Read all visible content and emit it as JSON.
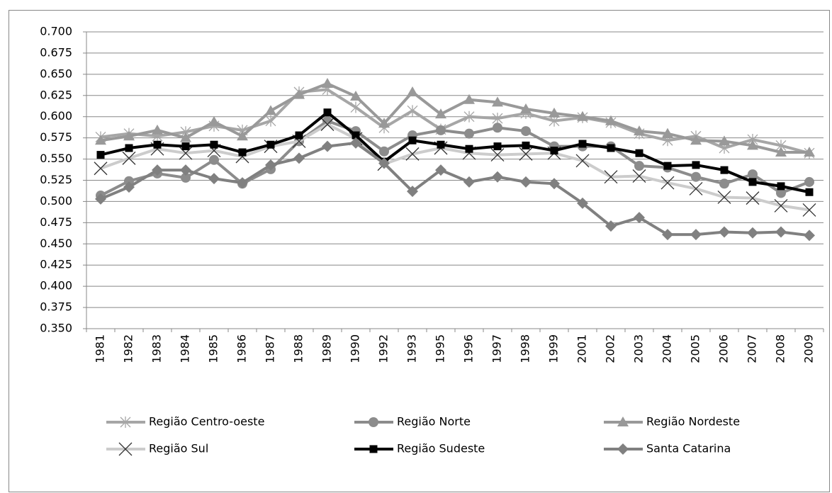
{
  "chart_data": {
    "type": "line",
    "categories": [
      "1981",
      "1982",
      "1983",
      "1984",
      "1985",
      "1986",
      "1987",
      "1988",
      "1989",
      "1990",
      "1992",
      "1993",
      "1995",
      "1996",
      "1997",
      "1998",
      "1999",
      "2001",
      "2002",
      "2003",
      "2004",
      "2005",
      "2006",
      "2007",
      "2008",
      "2009"
    ],
    "ylim": [
      0.35,
      0.7
    ],
    "yticks": [
      {
        "value": 0.35,
        "label": "0.350"
      },
      {
        "value": 0.375,
        "label": "0.375"
      },
      {
        "value": 0.4,
        "label": "0.400"
      },
      {
        "value": 0.425,
        "label": "0.425"
      },
      {
        "value": 0.45,
        "label": "0.450"
      },
      {
        "value": 0.475,
        "label": "0.475"
      },
      {
        "value": 0.5,
        "label": "0.500"
      },
      {
        "value": 0.525,
        "label": "0.525"
      },
      {
        "value": 0.55,
        "label": "0.550"
      },
      {
        "value": 0.575,
        "label": "0.575"
      },
      {
        "value": 0.6,
        "label": "0.600"
      },
      {
        "value": 0.625,
        "label": "0.625"
      },
      {
        "value": 0.65,
        "label": "0.650"
      },
      {
        "value": 0.675,
        "label": "0.675"
      },
      {
        "value": 0.7,
        "label": "0.700"
      }
    ],
    "grid": true,
    "legend": "bottom",
    "series": [
      {
        "name": "Região Centro-oeste",
        "color": "#a6a6a6",
        "marker": "asterisk",
        "values": [
          0.576,
          0.58,
          0.577,
          0.582,
          0.589,
          0.584,
          0.595,
          0.629,
          0.632,
          0.611,
          0.587,
          0.607,
          0.585,
          0.6,
          0.598,
          0.604,
          0.595,
          0.599,
          0.593,
          0.58,
          0.572,
          0.577,
          0.563,
          0.573,
          0.566,
          0.557
        ]
      },
      {
        "name": "Região Norte",
        "color": "#8c8c8c",
        "marker": "circle",
        "values": [
          0.507,
          0.524,
          0.533,
          0.528,
          0.549,
          0.521,
          0.538,
          0.571,
          0.595,
          0.583,
          0.559,
          0.578,
          0.584,
          0.58,
          0.587,
          0.583,
          0.565,
          0.565,
          0.565,
          0.542,
          0.54,
          0.529,
          0.521,
          0.532,
          0.51,
          0.523
        ]
      },
      {
        "name": "Região Nordeste",
        "color": "#999999",
        "marker": "triangle",
        "values": [
          0.572,
          0.577,
          0.584,
          0.575,
          0.594,
          0.577,
          0.607,
          0.626,
          0.639,
          0.624,
          0.592,
          0.629,
          0.603,
          0.62,
          0.617,
          0.609,
          0.604,
          0.6,
          0.595,
          0.583,
          0.58,
          0.572,
          0.571,
          0.566,
          0.558,
          0.558
        ]
      },
      {
        "name": "Região Sul",
        "color": "#cccccc",
        "marker": "x",
        "values": [
          0.539,
          0.551,
          0.562,
          0.557,
          0.56,
          0.553,
          0.565,
          0.571,
          0.591,
          0.574,
          0.544,
          0.556,
          0.563,
          0.557,
          0.555,
          0.556,
          0.557,
          0.548,
          0.529,
          0.53,
          0.522,
          0.515,
          0.505,
          0.504,
          0.495,
          0.49
        ]
      },
      {
        "name": "Região Sudeste",
        "color": "#000000",
        "marker": "square",
        "values": [
          0.555,
          0.563,
          0.567,
          0.565,
          0.567,
          0.558,
          0.567,
          0.578,
          0.605,
          0.578,
          0.547,
          0.572,
          0.567,
          0.562,
          0.565,
          0.566,
          0.56,
          0.568,
          0.563,
          0.557,
          0.542,
          0.543,
          0.537,
          0.523,
          0.518,
          0.511
        ]
      },
      {
        "name": "Santa Catarina",
        "color": "#808080",
        "marker": "diamond",
        "values": [
          0.503,
          0.517,
          0.537,
          0.537,
          0.527,
          0.522,
          0.543,
          0.551,
          0.565,
          0.569,
          0.545,
          0.512,
          0.537,
          0.523,
          0.529,
          0.523,
          0.521,
          0.498,
          0.471,
          0.481,
          0.461,
          0.461,
          0.464,
          0.463,
          0.464,
          0.46
        ]
      }
    ]
  }
}
